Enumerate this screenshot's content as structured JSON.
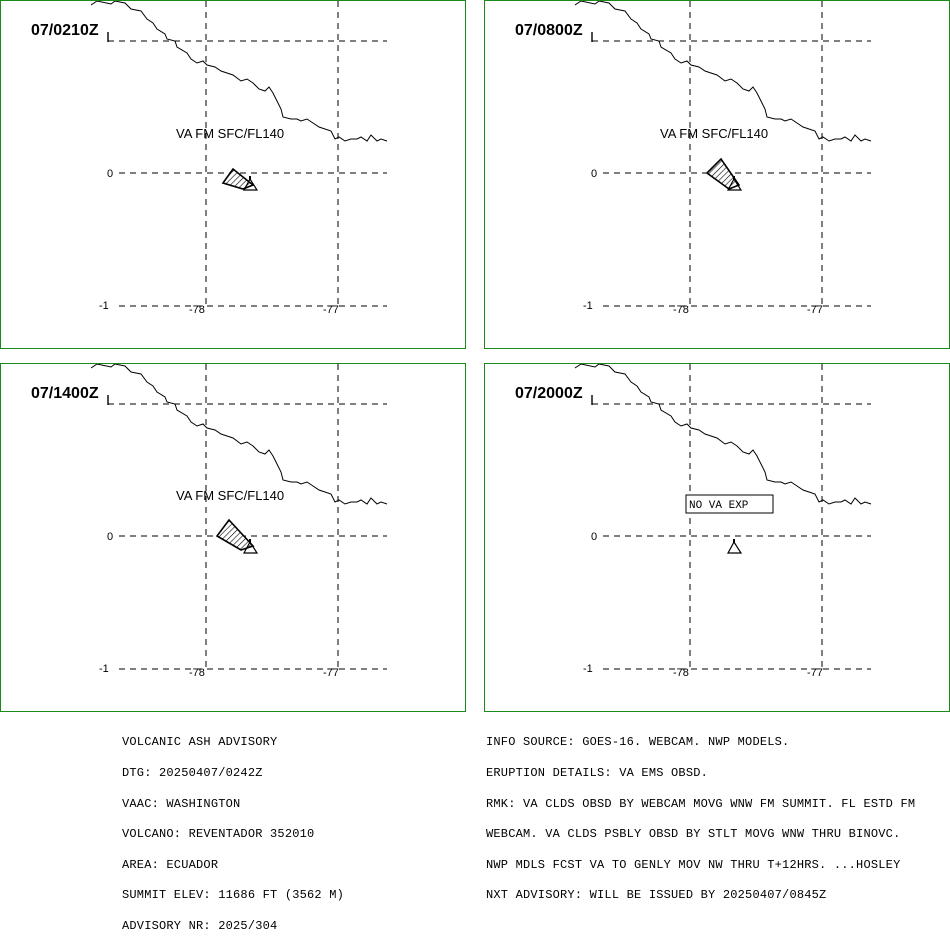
{
  "panels": [
    {
      "time": "07/0210Z",
      "label": "VA FM SFC/FL140",
      "ash": true
    },
    {
      "time": "07/0800Z",
      "label": "VA FM SFC/FL140",
      "ash": true
    },
    {
      "time": "07/1400Z",
      "label": "VA FM SFC/FL140",
      "ash": true
    },
    {
      "time": "07/2000Z",
      "label": "NO VA EXP",
      "ash": false
    }
  ],
  "axes": {
    "lat_ticks": [
      "0",
      "-1"
    ],
    "lon_ticks": [
      "-78",
      "-77"
    ]
  },
  "advisory_left": [
    "VOLCANIC ASH ADVISORY",
    "DTG: 20250407/0242Z",
    "VAAC: WASHINGTON",
    "VOLCANO: REVENTADOR 352010",
    "AREA: ECUADOR",
    "SUMMIT ELEV: 11686 FT (3562 M)",
    "ADVISORY NR: 2025/304"
  ],
  "advisory_right": [
    "INFO SOURCE: GOES-16. WEBCAM. NWP MODELS.",
    "ERUPTION DETAILS: VA EMS OBSD.",
    "RMK: VA CLDS OBSD BY WEBCAM MOVG WNW FM SUMMIT. FL ESTD FM",
    "WEBCAM. VA CLDS PSBLY OBSD BY STLT MOVG WNW THRU BINOVC.",
    "NWP MDLS FCST VA TO GENLY MOV NW THRU T+12HRS. ...HOSLEY",
    "NXT ADVISORY: WILL BE ISSUED BY 20250407/0845Z"
  ],
  "colors": {
    "panel_border": "#1a8a1a",
    "ink": "#000000",
    "background": "#ffffff"
  },
  "icons": {
    "volcano": "volcano-triangle-icon",
    "ash_cloud": "hatched-ash-polygon"
  }
}
